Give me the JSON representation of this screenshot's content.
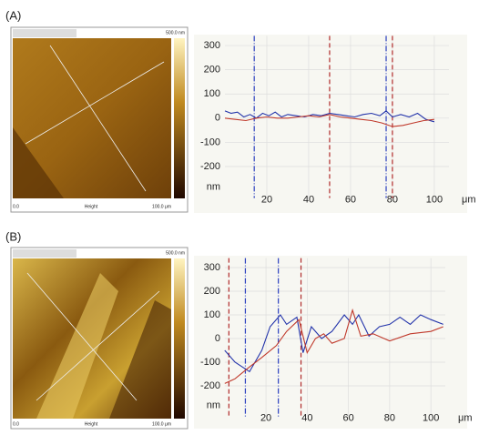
{
  "panels": [
    {
      "label": "(A)",
      "image": {
        "scale_top": "500.0 nm",
        "x_start": "0.0",
        "x_label": "Height",
        "x_end": "100.0 μm"
      }
    },
    {
      "label": "(B)",
      "image": {
        "scale_top": "500.0 nm",
        "x_start": "0.0",
        "x_label": "Height",
        "x_end": "100.0 μm"
      }
    }
  ],
  "chart_data": [
    {
      "type": "line",
      "y_unit": "nm",
      "x_unit": "μm",
      "xlim": [
        0,
        107
      ],
      "xticks": [
        20,
        40,
        60,
        80,
        100
      ],
      "ylim": [
        -330,
        340
      ],
      "yticks": [
        300,
        200,
        100,
        0,
        -100,
        -200
      ],
      "grid": true,
      "vlines": [
        {
          "x": 14,
          "color": "#2b3fbf"
        },
        {
          "x": 50,
          "color": "#b02a2a"
        },
        {
          "x": 77,
          "color": "#2b3fbf"
        },
        {
          "x": 80,
          "color": "#b02a2a"
        }
      ],
      "series": [
        {
          "color": "#2233aa",
          "x": [
            0,
            3,
            6,
            9,
            12,
            15,
            18,
            21,
            24,
            27,
            30,
            34,
            38,
            42,
            46,
            50,
            54,
            58,
            62,
            66,
            70,
            74,
            77,
            80,
            84,
            88,
            92,
            96,
            100
          ],
          "values": [
            30,
            20,
            25,
            5,
            15,
            0,
            20,
            10,
            25,
            5,
            15,
            10,
            5,
            15,
            10,
            20,
            15,
            10,
            5,
            15,
            20,
            10,
            30,
            5,
            15,
            5,
            20,
            -5,
            -15
          ]
        },
        {
          "color": "#c0392b",
          "x": [
            0,
            5,
            10,
            15,
            20,
            25,
            30,
            35,
            40,
            45,
            50,
            55,
            60,
            65,
            70,
            75,
            80,
            85,
            90,
            95,
            100
          ],
          "values": [
            0,
            -5,
            -10,
            0,
            5,
            0,
            0,
            5,
            10,
            5,
            15,
            5,
            0,
            -5,
            -10,
            -20,
            -35,
            -30,
            -20,
            -10,
            -5
          ]
        }
      ]
    },
    {
      "type": "line",
      "y_unit": "nm",
      "x_unit": "μm",
      "xlim": [
        0,
        107
      ],
      "xticks": [
        20,
        40,
        60,
        80,
        100
      ],
      "ylim": [
        -330,
        340
      ],
      "yticks": [
        300,
        200,
        100,
        0,
        -100,
        -200
      ],
      "grid": true,
      "vlines": [
        {
          "x": 2,
          "color": "#b02a2a"
        },
        {
          "x": 10,
          "color": "#2b3fbf"
        },
        {
          "x": 26,
          "color": "#2b3fbf"
        },
        {
          "x": 37,
          "color": "#b02a2a"
        }
      ],
      "series": [
        {
          "color": "#2233aa",
          "x": [
            0,
            5,
            12,
            18,
            22,
            27,
            30,
            35,
            38,
            42,
            47,
            52,
            58,
            62,
            65,
            70,
            75,
            80,
            85,
            90,
            95,
            100,
            106
          ],
          "values": [
            -50,
            -100,
            -140,
            -50,
            50,
            100,
            60,
            90,
            -60,
            50,
            0,
            30,
            100,
            60,
            100,
            10,
            50,
            60,
            90,
            60,
            100,
            80,
            60
          ]
        },
        {
          "color": "#c0392b",
          "x": [
            0,
            5,
            12,
            18,
            25,
            30,
            36,
            40,
            44,
            48,
            52,
            58,
            62,
            66,
            72,
            80,
            90,
            100,
            106
          ],
          "values": [
            -190,
            -170,
            -120,
            -80,
            -30,
            30,
            80,
            -60,
            0,
            20,
            -20,
            0,
            120,
            10,
            20,
            -10,
            20,
            30,
            50
          ]
        }
      ]
    }
  ]
}
